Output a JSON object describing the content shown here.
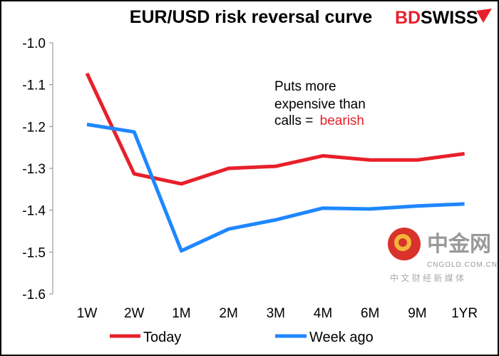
{
  "chart_data": {
    "type": "line",
    "title": "EUR/USD risk reversal curve",
    "categories": [
      "1W",
      "2W",
      "1M",
      "2M",
      "3M",
      "4M",
      "6M",
      "9M",
      "1YR"
    ],
    "series": [
      {
        "name": "Today",
        "color": "#e8202a",
        "values": [
          -1.073,
          -1.313,
          -1.337,
          -1.3,
          -1.295,
          -1.27,
          -1.28,
          -1.28,
          -1.265
        ]
      },
      {
        "name": "Week ago",
        "color": "#1e87ff",
        "values": [
          -1.195,
          -1.213,
          -1.497,
          -1.445,
          -1.423,
          -1.395,
          -1.397,
          -1.39,
          -1.385
        ]
      }
    ],
    "ylim": [
      -1.6,
      -1.0
    ],
    "yticks": [
      "-1.0",
      "-1.1",
      "-1.2",
      "-1.3",
      "-1.4",
      "-1.5",
      "-1.6"
    ],
    "xlabel": "",
    "ylabel": "",
    "grid": false,
    "legend": "bottom",
    "annotation": {
      "lines": [
        "Puts more",
        "expensive than",
        "calls = "
      ],
      "highlight": "bearish",
      "highlight_color": "#e8202a"
    }
  },
  "logo": {
    "brand_red": "BD",
    "brand_black": "SWISS"
  },
  "watermark": {
    "name": "中金网",
    "domain": "CNGOLD.COM.CN",
    "tagline": "中 文 财 经 新 媒 体"
  }
}
